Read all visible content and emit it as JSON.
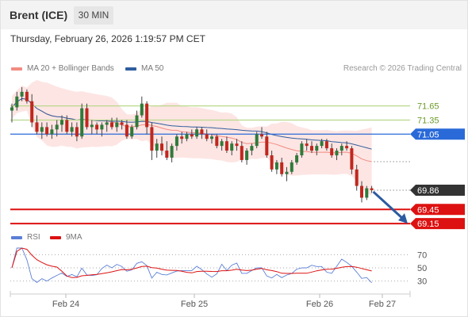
{
  "header": {
    "instrument": "Brent (ICE)",
    "timeframe": "30 MIN"
  },
  "timestamp": "Thursday, February 26, 2026 1:19:57 PM CET",
  "legend": {
    "ma20_label": "MA 20 + Bollinger Bands",
    "ma20_color": "#f28b82",
    "ma50_label": "MA 50",
    "ma50_color": "#2f5d9e",
    "credit": "Research © 2026 Trading Central"
  },
  "rsi_legend": {
    "rsi_label": "RSI",
    "rsi_color": "#5b7fd6",
    "ma_label": "9MA",
    "ma_color": "#dd1111"
  },
  "chart_data": [
    {
      "type": "candlestick",
      "ylim": [
        69.0,
        72.2
      ],
      "x_ticks": [
        "Feb 24",
        "Feb 25",
        "Feb 26",
        "Feb 27"
      ],
      "last_price": "69.86",
      "levels": [
        {
          "value": 71.65,
          "label": "71.65",
          "style": "resistance",
          "color": "#b9d98b"
        },
        {
          "value": 71.35,
          "label": "71.35",
          "style": "resistance",
          "color": "#b9d98b"
        },
        {
          "value": 71.05,
          "label": "71.05",
          "style": "pivot",
          "color": "#2a6ad8"
        },
        {
          "value": 69.45,
          "label": "69.45",
          "style": "support",
          "color": "#dd1111"
        },
        {
          "value": 69.15,
          "label": "69.15",
          "style": "support",
          "color": "#dd1111"
        }
      ],
      "candles": [
        [
          71.55,
          71.7,
          71.3,
          71.62
        ],
        [
          71.62,
          71.95,
          71.55,
          71.85
        ],
        [
          71.85,
          72.05,
          71.75,
          71.95
        ],
        [
          71.95,
          72.0,
          71.7,
          71.75
        ],
        [
          71.75,
          71.9,
          71.2,
          71.3
        ],
        [
          71.3,
          71.45,
          71.05,
          71.1
        ],
        [
          71.1,
          71.3,
          70.95,
          71.2
        ],
        [
          71.2,
          71.3,
          71.0,
          71.05
        ],
        [
          71.05,
          71.25,
          70.95,
          71.15
        ],
        [
          71.15,
          71.35,
          71.0,
          71.25
        ],
        [
          71.25,
          71.45,
          71.1,
          71.35
        ],
        [
          71.35,
          71.45,
          71.05,
          71.1
        ],
        [
          71.1,
          71.3,
          71.0,
          71.2
        ],
        [
          71.2,
          71.3,
          70.9,
          71.0
        ],
        [
          71.0,
          71.7,
          70.95,
          71.6
        ],
        [
          71.6,
          71.7,
          71.15,
          71.2
        ],
        [
          71.2,
          71.35,
          71.05,
          71.25
        ],
        [
          71.25,
          71.3,
          71.05,
          71.15
        ],
        [
          71.15,
          71.3,
          71.0,
          71.25
        ],
        [
          71.25,
          71.35,
          71.1,
          71.3
        ],
        [
          71.3,
          71.4,
          71.15,
          71.2
        ],
        [
          71.2,
          71.4,
          71.1,
          71.3
        ],
        [
          71.3,
          71.35,
          71.15,
          71.25
        ],
        [
          71.25,
          71.35,
          70.95,
          71.0
        ],
        [
          71.0,
          71.25,
          70.95,
          71.2
        ],
        [
          71.2,
          71.55,
          71.15,
          71.45
        ],
        [
          71.45,
          71.85,
          71.4,
          71.7
        ],
        [
          71.7,
          71.75,
          71.05,
          71.2
        ],
        [
          71.2,
          71.3,
          70.5,
          70.7
        ],
        [
          70.7,
          70.95,
          70.55,
          70.85
        ],
        [
          70.85,
          71.0,
          70.6,
          70.7
        ],
        [
          70.7,
          70.9,
          70.5,
          70.55
        ],
        [
          70.55,
          70.85,
          70.45,
          70.8
        ],
        [
          70.8,
          71.05,
          70.7,
          71.0
        ],
        [
          71.0,
          71.1,
          70.85,
          70.95
        ],
        [
          70.95,
          71.1,
          70.9,
          71.05
        ],
        [
          71.05,
          71.15,
          70.95,
          71.0
        ],
        [
          71.0,
          71.2,
          70.95,
          71.15
        ],
        [
          71.15,
          71.2,
          70.95,
          71.05
        ],
        [
          71.05,
          71.15,
          70.9,
          70.95
        ],
        [
          70.95,
          71.05,
          70.85,
          71.0
        ],
        [
          71.0,
          71.05,
          70.75,
          70.8
        ],
        [
          70.8,
          70.95,
          70.7,
          70.9
        ],
        [
          70.9,
          71.0,
          70.65,
          70.7
        ],
        [
          70.7,
          70.9,
          70.6,
          70.85
        ],
        [
          70.85,
          70.95,
          70.7,
          70.8
        ],
        [
          70.8,
          70.9,
          70.45,
          70.5
        ],
        [
          70.5,
          70.75,
          70.4,
          70.7
        ],
        [
          70.7,
          70.85,
          70.6,
          70.8
        ],
        [
          70.8,
          71.1,
          70.75,
          71.05
        ],
        [
          71.05,
          71.2,
          70.95,
          71.0
        ],
        [
          71.0,
          71.1,
          70.55,
          70.6
        ],
        [
          70.6,
          70.7,
          70.25,
          70.3
        ],
        [
          70.3,
          70.5,
          70.2,
          70.45
        ],
        [
          70.45,
          70.55,
          70.15,
          70.2
        ],
        [
          70.2,
          70.35,
          70.05,
          70.25
        ],
        [
          70.25,
          70.5,
          70.2,
          70.45
        ],
        [
          70.45,
          70.65,
          70.4,
          70.6
        ],
        [
          70.6,
          70.9,
          70.55,
          70.85
        ],
        [
          70.85,
          70.95,
          70.7,
          70.8
        ],
        [
          70.8,
          70.9,
          70.65,
          70.7
        ],
        [
          70.7,
          70.85,
          70.6,
          70.8
        ],
        [
          70.8,
          70.95,
          70.75,
          70.9
        ],
        [
          70.9,
          70.95,
          70.7,
          70.75
        ],
        [
          70.75,
          70.85,
          70.55,
          70.6
        ],
        [
          70.6,
          70.75,
          70.5,
          70.7
        ],
        [
          70.7,
          70.85,
          70.6,
          70.8
        ],
        [
          70.8,
          70.9,
          70.7,
          70.75
        ],
        [
          70.75,
          70.8,
          70.2,
          70.3
        ],
        [
          70.3,
          70.4,
          69.85,
          69.95
        ],
        [
          69.95,
          70.05,
          69.6,
          69.7
        ],
        [
          69.7,
          69.95,
          69.65,
          69.9
        ],
        [
          69.9,
          69.95,
          69.8,
          69.86
        ]
      ]
    },
    {
      "type": "line",
      "series": [
        {
          "name": "RSI"
        },
        {
          "name": "9MA"
        }
      ],
      "levels": [
        70,
        50,
        30
      ],
      "ylim": [
        20,
        80
      ]
    }
  ]
}
